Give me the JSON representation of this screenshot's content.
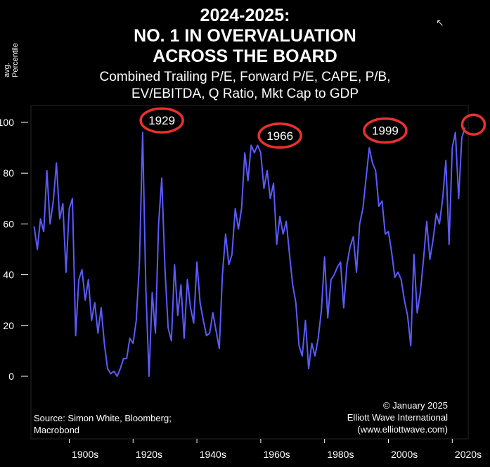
{
  "title_lines": [
    "2024-2025:",
    "NO. 1 IN OVERVALUATION",
    "ACROSS THE BOARD"
  ],
  "subtitle_lines": [
    "Combined Trailing P/E, Forward P/E, CAPE, P/B,",
    "EV/EBITDA, Q Ratio, Mkt Cap to GDP"
  ],
  "y_axis_label_lines": [
    "avg.",
    "Percentile"
  ],
  "source_lines": [
    "Source: Simon White, Bloomberg;",
    "Macrobond"
  ],
  "credit_lines": [
    "© January 2025",
    "Elliott Wave International",
    "(www.elliottwave.com)"
  ],
  "colors": {
    "background": "#000000",
    "line": "#5b5bff",
    "circle": "#e8312f",
    "text": "#ffffff",
    "frame": "#2a2a2a"
  },
  "chart_data": {
    "type": "line",
    "ylim": [
      0,
      100
    ],
    "xlim": [
      1888,
      2025
    ],
    "y_ticks": [
      0,
      20,
      40,
      60,
      80,
      100
    ],
    "x_ticks": [
      {
        "value": 1900,
        "label": "1900s"
      },
      {
        "value": 1920,
        "label": "1920s"
      },
      {
        "value": 1940,
        "label": "1940s"
      },
      {
        "value": 1960,
        "label": "1960s"
      },
      {
        "value": 1980,
        "label": "1980s"
      },
      {
        "value": 2000,
        "label": "2000s"
      },
      {
        "value": 2020,
        "label": "2020s"
      }
    ],
    "annotations": [
      {
        "label": "1929",
        "x": 1929,
        "y": 98
      },
      {
        "label": "1966",
        "x": 1966,
        "y": 92
      },
      {
        "label": "1999",
        "x": 1999,
        "y": 94
      },
      {
        "label": "",
        "x": 2024,
        "y": 98
      }
    ],
    "series": [
      {
        "x": [
          1889,
          1890,
          1891,
          1892,
          1893,
          1894,
          1895,
          1896,
          1897,
          1898,
          1899,
          1900,
          1901,
          1902,
          1903,
          1904,
          1905,
          1906,
          1907,
          1908,
          1909,
          1910,
          1911,
          1912,
          1913,
          1914,
          1915,
          1916,
          1917,
          1918,
          1919,
          1920,
          1921,
          1922,
          1923,
          1924,
          1925,
          1926,
          1927,
          1928,
          1929,
          1930,
          1931,
          1932,
          1933,
          1934,
          1935,
          1936,
          1937,
          1938,
          1939,
          1940,
          1941,
          1942,
          1943,
          1944,
          1945,
          1946,
          1947,
          1948,
          1949,
          1950,
          1951,
          1952,
          1953,
          1954,
          1955,
          1956,
          1957,
          1958,
          1959,
          1960,
          1961,
          1962,
          1963,
          1964,
          1965,
          1966,
          1967,
          1968,
          1969,
          1970,
          1971,
          1972,
          1973,
          1974,
          1975,
          1976,
          1977,
          1978,
          1979,
          1980,
          1981,
          1982,
          1983,
          1984,
          1985,
          1986,
          1987,
          1988,
          1989,
          1990,
          1991,
          1992,
          1993,
          1994,
          1995,
          1996,
          1997,
          1998,
          1999,
          2000,
          2001,
          2002,
          2003,
          2004,
          2005,
          2006,
          2007,
          2008,
          2009,
          2010,
          2011,
          2012,
          2013,
          2014,
          2015,
          2016,
          2017,
          2018,
          2019,
          2020,
          2021,
          2022,
          2023,
          2024
        ],
        "y": [
          59,
          50,
          62,
          57,
          81,
          60,
          69,
          84,
          62,
          68,
          41,
          66,
          70,
          16,
          38,
          42,
          30,
          38,
          22,
          29,
          17,
          27,
          13,
          3,
          1,
          2,
          0,
          3,
          7,
          7,
          15,
          13,
          22,
          45,
          96,
          35,
          0,
          33,
          17,
          60,
          78,
          42,
          19,
          14,
          44,
          24,
          36,
          15,
          38,
          27,
          21,
          45,
          29,
          22,
          16,
          17,
          25,
          18,
          11,
          40,
          56,
          44,
          48,
          66,
          58,
          66,
          88,
          77,
          91,
          88,
          91,
          88,
          74,
          81,
          70,
          76,
          52,
          63,
          56,
          61,
          48,
          36,
          29,
          12,
          8,
          22,
          3,
          13,
          8,
          15,
          26,
          47,
          23,
          38,
          40,
          43,
          45,
          27,
          44,
          51,
          55,
          41,
          60,
          66,
          78,
          90,
          84,
          81,
          67,
          69,
          56,
          57,
          49,
          39,
          41,
          38,
          30,
          24,
          12,
          48,
          25,
          33,
          46,
          61,
          46,
          54,
          64,
          60,
          70,
          85,
          52,
          90,
          96,
          70,
          94,
          98
        ]
      }
    ]
  }
}
